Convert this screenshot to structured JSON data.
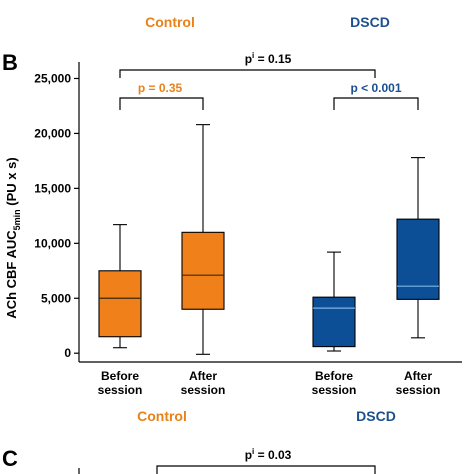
{
  "header": {
    "control": "Control",
    "dscd": "DSCD"
  },
  "panel_b": {
    "letter": "B",
    "top_bracket_label": "p",
    "top_bracket_sup": "i",
    "top_bracket_value": " = 0.15",
    "control_bracket_label": "p = 0.35",
    "dscd_bracket_label": "p < 0.001",
    "colors": {
      "control": "#F08019",
      "dscd": "#0D4F96",
      "control_text": "#E8821A",
      "dscd_text": "#1B4F8F",
      "median_dscd": "#7FB3E6"
    }
  },
  "panel_c": {
    "letter": "C",
    "top_bracket_label": "p",
    "top_bracket_sup": "i",
    "top_bracket_value": " = 0.03"
  },
  "chart_data": {
    "type": "box",
    "ylabel_main": "ACh CBF AUC",
    "ylabel_sub": "5min",
    "ylabel_unit": " (PU x s)",
    "ylim": [
      -800,
      26500
    ],
    "yticks": [
      0,
      5000,
      10000,
      15000,
      20000,
      25000
    ],
    "ytick_labels": [
      "0",
      "5,000",
      "10,000",
      "15,000",
      "20,000",
      "25,000"
    ],
    "categories": [
      "Before session",
      "After session",
      "Before session",
      "After session"
    ],
    "category_lines": [
      [
        "Before",
        "session"
      ],
      [
        "After",
        "session"
      ],
      [
        "Before",
        "session"
      ],
      [
        "After",
        "session"
      ]
    ],
    "groups": [
      {
        "name": "Control",
        "color": "#F08019"
      },
      {
        "name": "DSCD",
        "color": "#0D4F96"
      }
    ],
    "boxes": [
      {
        "group": "Control",
        "label": "Before session",
        "min": 500,
        "q1": 1500,
        "median": 5000,
        "q3": 7500,
        "max": 11700
      },
      {
        "group": "Control",
        "label": "After session",
        "min": -100,
        "q1": 4000,
        "median": 7100,
        "q3": 11000,
        "max": 20800
      },
      {
        "group": "DSCD",
        "label": "Before session",
        "min": 200,
        "q1": 600,
        "median": 4100,
        "q3": 5100,
        "max": 9200
      },
      {
        "group": "DSCD",
        "label": "After session",
        "min": 1400,
        "q1": 4900,
        "median": 6100,
        "q3": 12200,
        "max": 17800
      }
    ]
  }
}
